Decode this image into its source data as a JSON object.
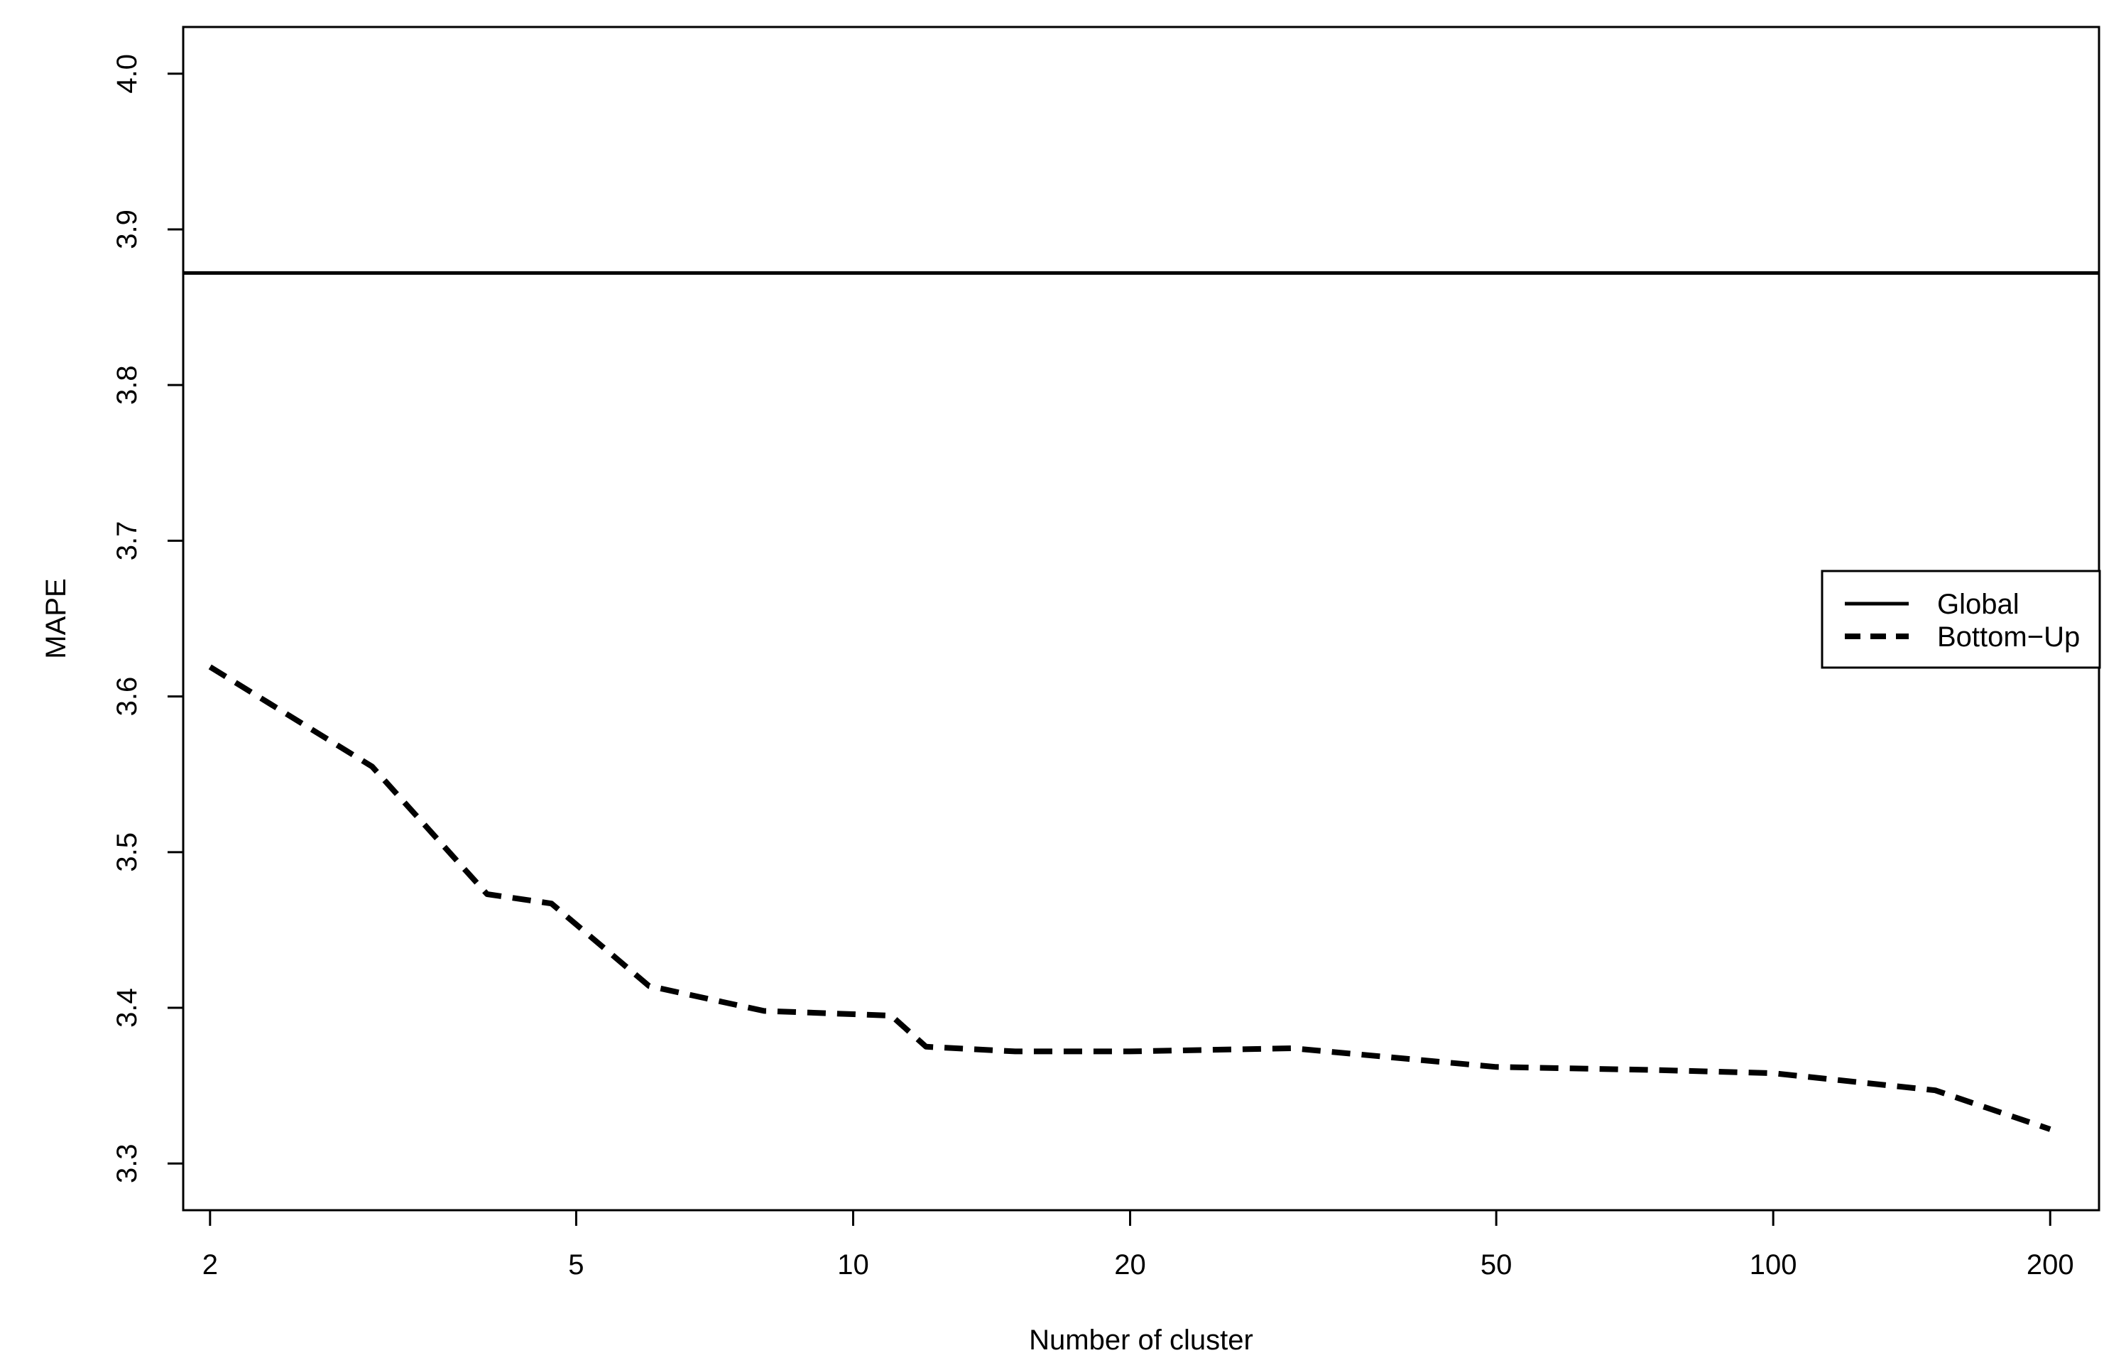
{
  "chart_data": {
    "type": "line",
    "title": "",
    "xlabel": "Number of cluster",
    "ylabel": "MAPE",
    "x_scale": "log",
    "xlim": [
      1.87,
      226
    ],
    "ylim": [
      3.27,
      4.03
    ],
    "x_ticks": [
      2,
      5,
      10,
      20,
      50,
      100,
      200
    ],
    "x_tick_labels": [
      "2",
      "5",
      "10",
      "20",
      "50",
      "100",
      "200"
    ],
    "y_ticks": [
      3.3,
      3.4,
      3.5,
      3.6,
      3.7,
      3.8,
      3.9,
      4.0
    ],
    "y_tick_labels": [
      "3.3",
      "3.4",
      "3.5",
      "3.6",
      "3.7",
      "3.8",
      "3.9",
      "4.0"
    ],
    "grid": false,
    "legend_position": "right",
    "series": [
      {
        "name": "Global",
        "style": "solid",
        "color": "#000000",
        "x": [
          1.87,
          226
        ],
        "y": [
          3.872,
          3.872
        ]
      },
      {
        "name": "Bottom−Up",
        "style": "dashed",
        "color": "#000000",
        "x": [
          2,
          3,
          4,
          4.7,
          6,
          8,
          11,
          12,
          15,
          20,
          30,
          50,
          75,
          100,
          150,
          200
        ],
        "y": [
          3.619,
          3.555,
          3.473,
          3.467,
          3.414,
          3.398,
          3.395,
          3.375,
          3.372,
          3.372,
          3.374,
          3.362,
          3.36,
          3.358,
          3.347,
          3.322
        ]
      }
    ]
  }
}
